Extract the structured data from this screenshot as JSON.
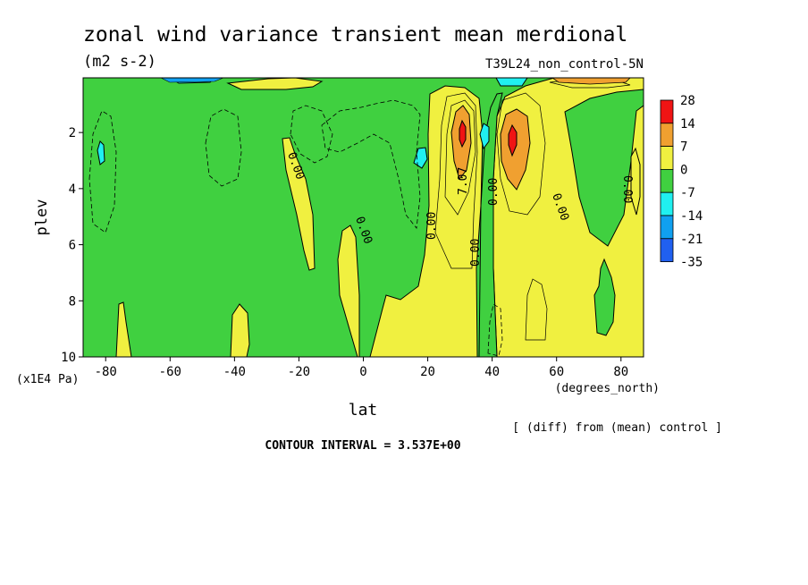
{
  "chart_data": {
    "type": "contour",
    "title": "zonal wind variance transient mean merdional",
    "units": "(m2 s-2)",
    "experiment": "T39L24_non_control-5N",
    "xlabel": "lat",
    "xunits": "(degrees_north)",
    "ylabel": "plev",
    "yunits": "(x1E4 Pa)",
    "xlim": [
      -87,
      87
    ],
    "ylim": [
      10,
      0.05
    ],
    "x_ticks": [
      "-80",
      "-60",
      "-40",
      "-20",
      "0",
      "20",
      "40",
      "60",
      "80"
    ],
    "x_tick_values": [
      -80,
      -60,
      -40,
      -20,
      0,
      20,
      40,
      60,
      80
    ],
    "y_ticks": [
      "2",
      "4",
      "6",
      "8",
      "10"
    ],
    "y_tick_values": [
      2,
      4,
      6,
      8,
      10
    ],
    "contour_interval_text": "CONTOUR INTERVAL = 3.537E+00",
    "footnote": "[ (diff) from (mean) control ]",
    "contour_labels": [
      {
        "text": "0.00",
        "lat": -22,
        "plev": 3.0
      },
      {
        "text": "0.00",
        "lat": -2,
        "plev": 5.7
      },
      {
        "text": "0.00",
        "lat": 22,
        "plev": 5.3
      },
      {
        "text": "7.07",
        "lat": 31,
        "plev": 3.8
      },
      {
        "text": "0.00",
        "lat": 35,
        "plev": 6.4
      },
      {
        "text": "0.00",
        "lat": 41,
        "plev": 3.9
      },
      {
        "text": "0.00",
        "lat": 62,
        "plev": 4.7
      },
      {
        "text": "0.00",
        "lat": 83,
        "plev": 3.9
      }
    ],
    "legend": {
      "levels": [
        "28",
        "14",
        "7",
        "0",
        "-7",
        "-14",
        "-21",
        "-35"
      ],
      "colors": [
        "#f01414",
        "#f0a030",
        "#f0f040",
        "#40d040",
        "#20f0f0",
        "#10a0f0",
        "#2060f0"
      ]
    },
    "regions": [
      {
        "band": "0 to 7",
        "color": "#f0f040",
        "desc": "yellow columns near -82, -75, -40, -25, 0, 18-35, 45-87 lat"
      },
      {
        "band": "7 to 14",
        "color": "#f0a030",
        "desc": "orange cores near 31 and 47 lat at plev 2-3"
      },
      {
        "band": "14 to 28",
        "color": "#f01414",
        "desc": "red maxima near 31 and 47 lat at plev 2"
      },
      {
        "band": "-14 to -7",
        "color": "#20f0f0",
        "desc": "small cyan spots near -82, 18, 38 lat"
      }
    ]
  }
}
